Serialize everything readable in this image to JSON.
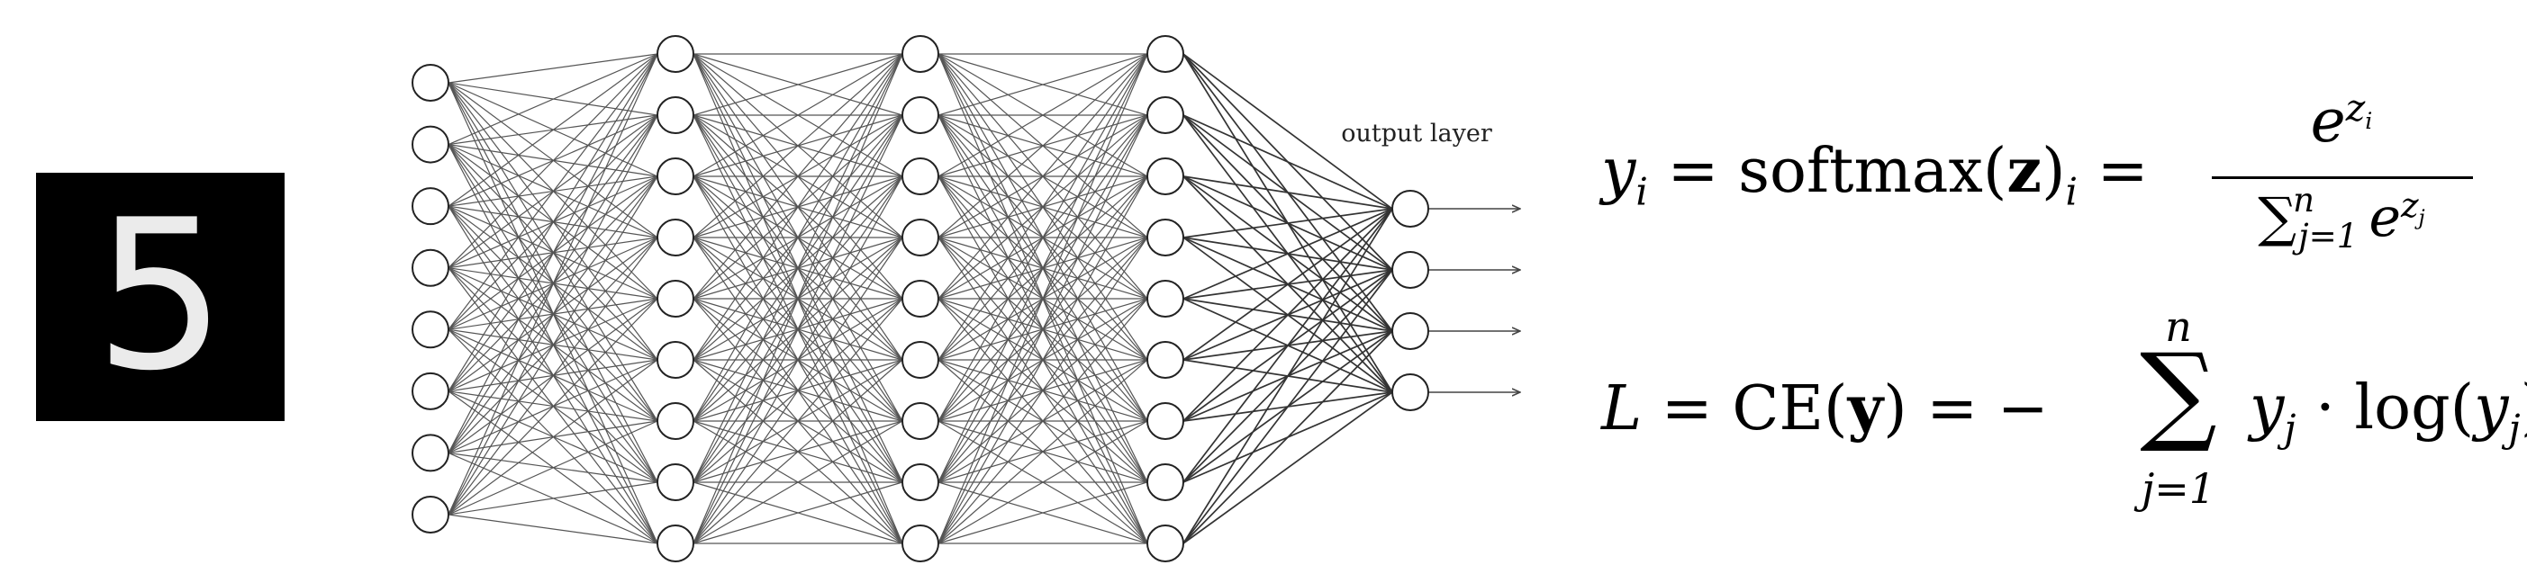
{
  "input_image": {
    "digit": "5"
  },
  "network": {
    "output_label": "output layer",
    "layers": [
      {
        "nodes": 8
      },
      {
        "nodes": 9
      },
      {
        "nodes": 9
      },
      {
        "nodes": 9
      },
      {
        "nodes": 4
      }
    ],
    "output_arrows": 4
  },
  "equations": {
    "softmax": {
      "lhs_var": "y",
      "lhs_sub": "i",
      "fn": "softmax",
      "arg": "z",
      "arg_sub": "i",
      "num_base": "e",
      "num_exp_var": "z",
      "num_exp_sub": "i",
      "den_sum": "∑",
      "den_sum_upper": "n",
      "den_sum_lower": "j=1",
      "den_base": "e",
      "den_exp_var": "z",
      "den_exp_sub": "j"
    },
    "loss": {
      "lhs": "L",
      "fn": "CE",
      "arg": "y",
      "sum_sign": "∑",
      "sum_upper": "n",
      "sum_lower": "j=1",
      "term_var": "y",
      "term_sub": "j",
      "dot": "·",
      "log": "log",
      "log_arg": "y",
      "log_arg_sub": "j"
    }
  }
}
